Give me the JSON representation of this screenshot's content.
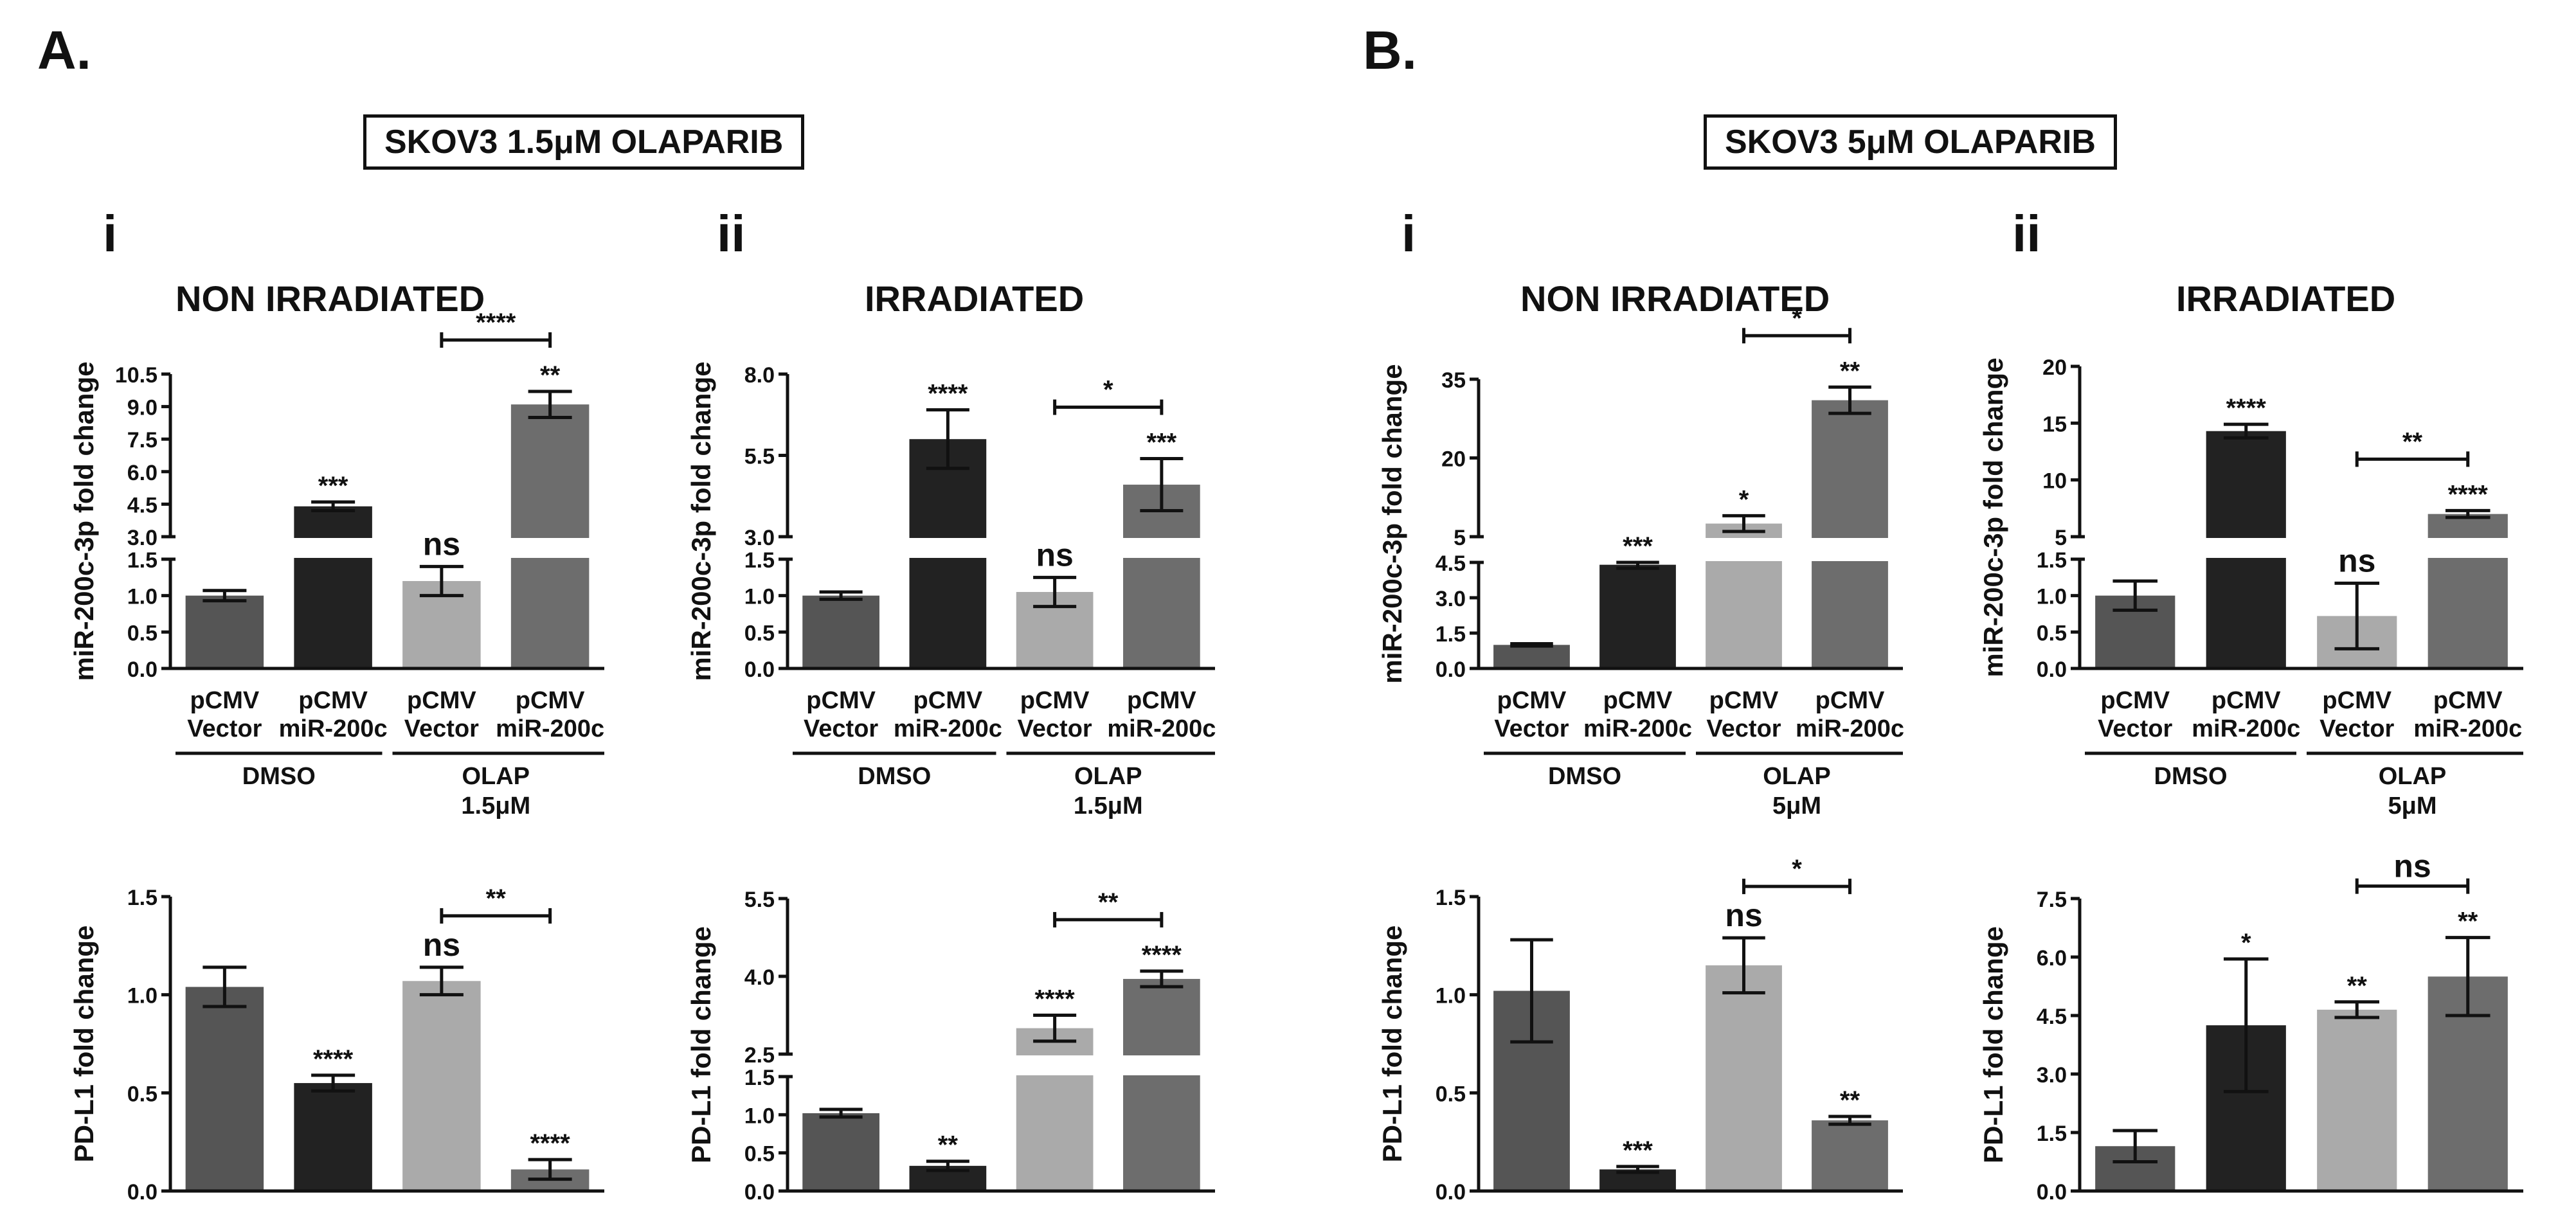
{
  "panels": [
    {
      "letter": "A.",
      "condition": "SKOV3 1.5μM OLAPARIB",
      "olap_dose": "1.5μM"
    },
    {
      "letter": "B.",
      "condition": "SKOV3 5μM OLAPARIB",
      "olap_dose": "5μM"
    }
  ],
  "sub_labels": {
    "i": "i",
    "ii": "ii",
    "non_irradiated": "NON IRRADIATED",
    "irradiated": "IRRADIATED"
  },
  "x_labels": {
    "groups": [
      "pCMV\nVector",
      "pCMV\nmiR-200c",
      "pCMV\nVector",
      "pCMV\nmiR-200c"
    ],
    "dmso": "DMSO",
    "olap": "OLAP"
  },
  "colors": {
    "bar1": "#555555",
    "bar2": "#222222",
    "bar3": "#aaaaaa",
    "bar4": "#6d6d6d"
  },
  "chart_data": [
    {
      "id": "A-i-mir",
      "type": "bar",
      "title": "NON IRRADIATED",
      "ylabel": "miR-200c-3p fold change",
      "categories": [
        "pCMV Vector DMSO",
        "pCMV miR-200c DMSO",
        "pCMV Vector OLAP 1.5μM",
        "pCMV miR-200c OLAP 1.5μM"
      ],
      "values": [
        1.0,
        4.4,
        1.2,
        9.1
      ],
      "errors": [
        0.07,
        0.2,
        0.2,
        0.6
      ],
      "broken_axis": {
        "lower": [
          0,
          1.5
        ],
        "upper": [
          3.0,
          10.5
        ]
      },
      "yticks_lower": [
        "0.0",
        "0.5",
        "1.0",
        "1.5"
      ],
      "yticks_upper": [
        "3.0",
        "4.5",
        "6.0",
        "7.5",
        "9.0",
        "10.5"
      ],
      "yticks_lower_values": [
        0,
        0.5,
        1.0,
        1.5
      ],
      "yticks_upper_values": [
        3.0,
        4.5,
        6.0,
        7.5,
        9.0,
        10.5
      ],
      "sig": [
        "",
        "***",
        "ns",
        "**"
      ],
      "bracket": {
        "from": 2,
        "to": 3,
        "label": "****"
      }
    },
    {
      "id": "A-ii-mir",
      "type": "bar",
      "title": "IRRADIATED",
      "ylabel": "miR-200c-3p fold change",
      "categories": [
        "pCMV Vector DMSO",
        "pCMV miR-200c DMSO",
        "pCMV Vector OLAP 1.5μM",
        "pCMV miR-200c OLAP 1.5μM"
      ],
      "values": [
        1.0,
        6.0,
        1.05,
        4.6
      ],
      "errors": [
        0.05,
        0.9,
        0.2,
        0.8
      ],
      "broken_axis": {
        "lower": [
          0,
          1.5
        ],
        "upper": [
          3.0,
          8.0
        ]
      },
      "yticks_lower": [
        "0.0",
        "0.5",
        "1.0",
        "1.5"
      ],
      "yticks_upper": [
        "3.0",
        "5.5",
        "8.0"
      ],
      "yticks_lower_values": [
        0,
        0.5,
        1.0,
        1.5
      ],
      "yticks_upper_values": [
        3.0,
        5.5,
        8.0
      ],
      "sig": [
        "",
        "****",
        "ns",
        "***"
      ],
      "bracket": {
        "from": 2,
        "to": 3,
        "label": "*"
      }
    },
    {
      "id": "B-i-mir",
      "type": "bar",
      "title": "NON IRRADIATED",
      "ylabel": "miR-200c-3p fold change",
      "categories": [
        "pCMV Vector DMSO",
        "pCMV miR-200c DMSO",
        "pCMV Vector OLAP 5μM",
        "pCMV miR-200c OLAP 5μM"
      ],
      "values": [
        1.0,
        4.4,
        7.5,
        31
      ],
      "errors": [
        0.05,
        0.15,
        1.5,
        2.5
      ],
      "broken_axis": {
        "lower": [
          0,
          4.5
        ],
        "upper": [
          5,
          35
        ]
      },
      "yticks_lower": [
        "0.0",
        "1.5",
        "3.0",
        "4.5"
      ],
      "yticks_upper": [
        "5",
        "20",
        "35"
      ],
      "yticks_lower_values": [
        0,
        1.5,
        3.0,
        4.5
      ],
      "yticks_upper_values": [
        5,
        20,
        35
      ],
      "sig": [
        "",
        "***",
        "*",
        "**"
      ],
      "bracket": {
        "from": 2,
        "to": 3,
        "label": "*"
      }
    },
    {
      "id": "B-ii-mir",
      "type": "bar",
      "title": "IRRADIATED",
      "ylabel": "miR-200c-3p fold change",
      "categories": [
        "pCMV Vector DMSO",
        "pCMV miR-200c DMSO",
        "pCMV Vector OLAP 5μM",
        "pCMV miR-200c OLAP 5μM"
      ],
      "values": [
        1.0,
        14.3,
        0.72,
        7.0
      ],
      "errors": [
        0.2,
        0.6,
        0.45,
        0.3
      ],
      "broken_axis": {
        "lower": [
          0,
          1.5
        ],
        "upper": [
          5,
          20
        ]
      },
      "yticks_lower": [
        "0.0",
        "0.5",
        "1.0",
        "1.5"
      ],
      "yticks_upper": [
        "5",
        "10",
        "15",
        "20"
      ],
      "yticks_lower_values": [
        0,
        0.5,
        1.0,
        1.5
      ],
      "yticks_upper_values": [
        5,
        10,
        15,
        20
      ],
      "sig": [
        "",
        "****",
        "ns",
        "****"
      ],
      "bracket": {
        "from": 2,
        "to": 3,
        "label": "**"
      }
    },
    {
      "id": "A-i-pdl1",
      "type": "bar",
      "ylabel": "PD-L1 fold change",
      "categories": [
        "pCMV Vector DMSO",
        "pCMV miR-200c DMSO",
        "pCMV Vector OLAP 1.5μM",
        "pCMV miR-200c OLAP 1.5μM"
      ],
      "values": [
        1.04,
        0.55,
        1.07,
        0.11
      ],
      "errors": [
        0.1,
        0.04,
        0.07,
        0.05
      ],
      "ylim": [
        0,
        1.5
      ],
      "yticks": [
        "0.0",
        "0.5",
        "1.0",
        "1.5"
      ],
      "yticks_values": [
        0,
        0.5,
        1.0,
        1.5
      ],
      "sig": [
        "",
        "****",
        "ns",
        "****"
      ],
      "bracket": {
        "from": 2,
        "to": 3,
        "label": "**"
      }
    },
    {
      "id": "A-ii-pdl1",
      "type": "bar",
      "ylabel": "PD-L1 fold change",
      "categories": [
        "pCMV Vector DMSO",
        "pCMV miR-200c DMSO",
        "pCMV Vector OLAP 1.5μM",
        "pCMV miR-200c OLAP 1.5μM"
      ],
      "values": [
        1.02,
        0.33,
        3.0,
        3.95
      ],
      "errors": [
        0.05,
        0.06,
        0.25,
        0.15
      ],
      "broken_axis": {
        "lower": [
          0,
          1.5
        ],
        "upper": [
          2.5,
          5.5
        ]
      },
      "yticks_lower": [
        "0.0",
        "0.5",
        "1.0",
        "1.5"
      ],
      "yticks_upper": [
        "2.5",
        "4.0",
        "5.5"
      ],
      "yticks_lower_values": [
        0,
        0.5,
        1.0,
        1.5
      ],
      "yticks_upper_values": [
        2.5,
        4.0,
        5.5
      ],
      "sig": [
        "",
        "**",
        "****",
        "****"
      ],
      "bracket": {
        "from": 2,
        "to": 3,
        "label": "**"
      }
    },
    {
      "id": "B-i-pdl1",
      "type": "bar",
      "ylabel": "PD-L1 fold change",
      "categories": [
        "pCMV Vector DMSO",
        "pCMV miR-200c DMSO",
        "pCMV Vector OLAP 5μM",
        "pCMV miR-200c OLAP 5μM"
      ],
      "values": [
        1.02,
        0.11,
        1.15,
        0.36
      ],
      "errors": [
        0.26,
        0.015,
        0.14,
        0.02
      ],
      "ylim": [
        0,
        1.5
      ],
      "yticks": [
        "0.0",
        "0.5",
        "1.0",
        "1.5"
      ],
      "yticks_values": [
        0,
        0.5,
        1.0,
        1.5
      ],
      "sig": [
        "",
        "***",
        "ns",
        "**"
      ],
      "bracket": {
        "from": 2,
        "to": 3,
        "label": "*"
      }
    },
    {
      "id": "B-ii-pdl1",
      "type": "bar",
      "ylabel": "PD-L1 fold change",
      "categories": [
        "pCMV Vector DMSO",
        "pCMV miR-200c DMSO",
        "pCMV Vector OLAP 5μM",
        "pCMV miR-200c OLAP 5μM"
      ],
      "values": [
        1.15,
        4.25,
        4.65,
        5.5
      ],
      "errors": [
        0.4,
        1.7,
        0.2,
        1.0
      ],
      "ylim": [
        0,
        7.5
      ],
      "yticks": [
        "0.0",
        "1.5",
        "3.0",
        "4.5",
        "6.0",
        "7.5"
      ],
      "yticks_values": [
        0,
        1.5,
        3.0,
        4.5,
        6.0,
        7.5
      ],
      "sig": [
        "",
        "*",
        "**",
        "**"
      ],
      "bracket": {
        "from": 2,
        "to": 3,
        "label": "ns"
      }
    }
  ]
}
